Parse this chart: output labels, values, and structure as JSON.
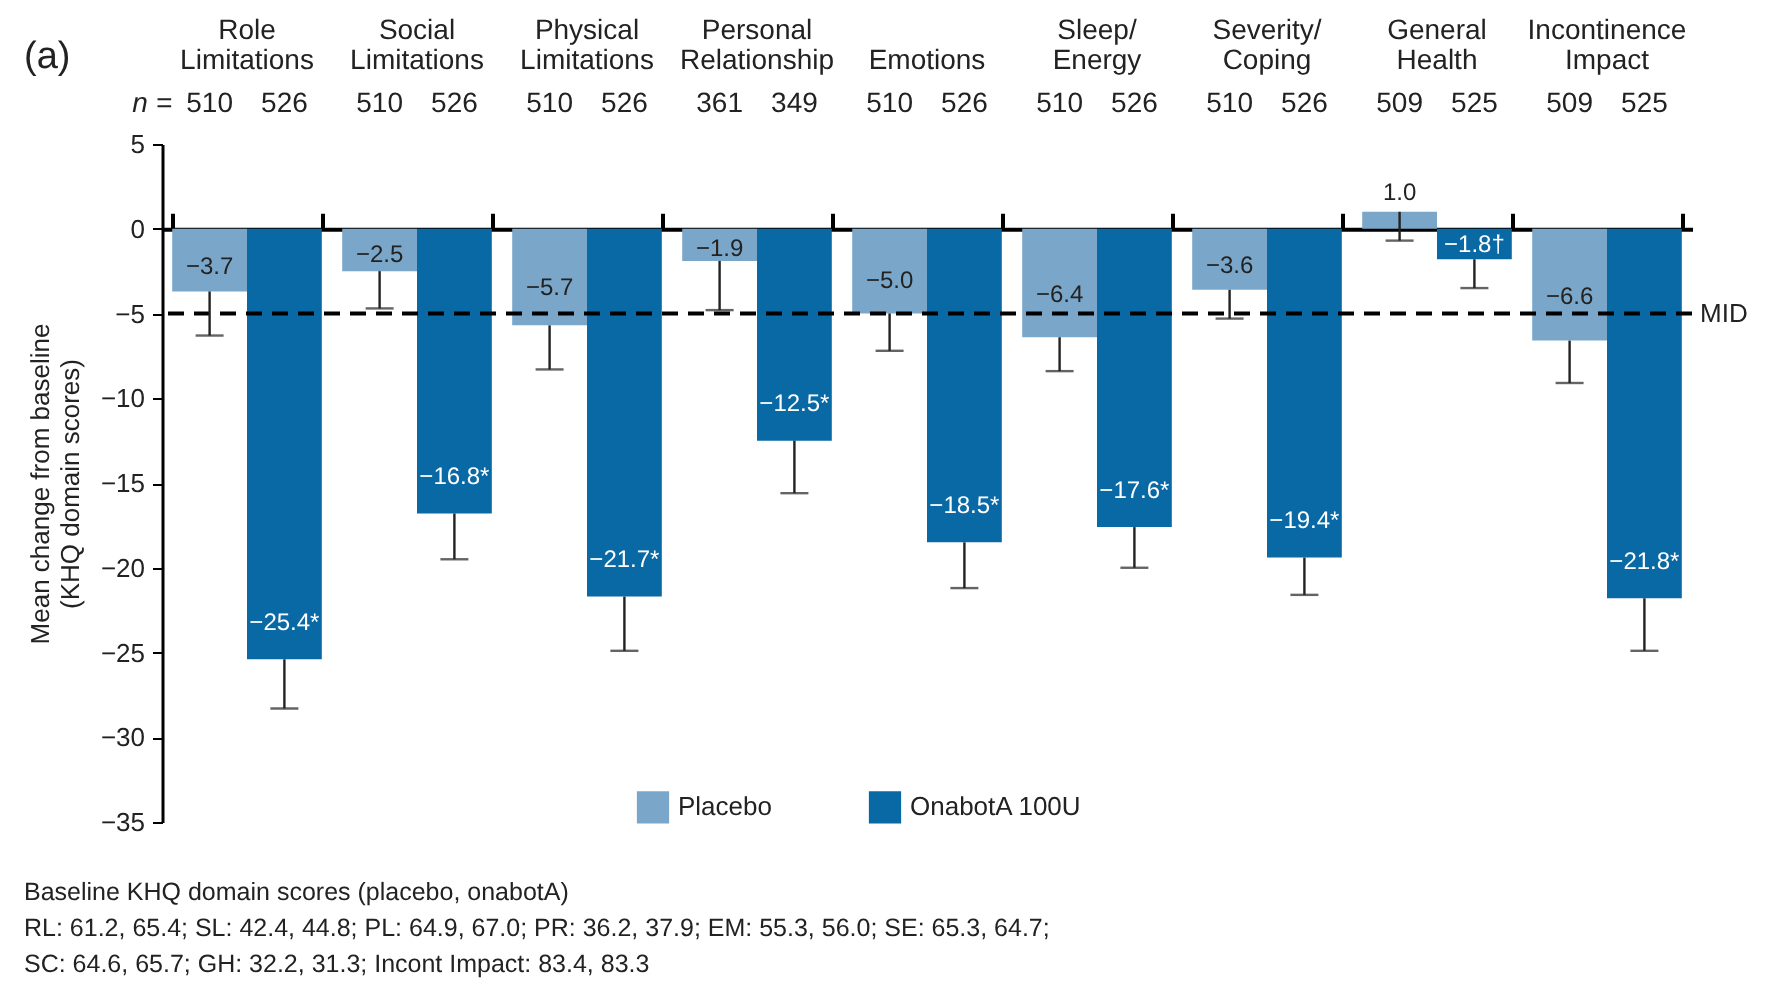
{
  "chart_data": {
    "type": "bar",
    "ylabel": "Mean change from baseline (KHQ domain scores)",
    "categories": [
      "Role Limitations",
      "Social Limitations",
      "Physical Limitations",
      "Personal Relationship",
      "Emotions",
      "Sleep/ Energy",
      "Severity/ Coping",
      "General Health",
      "Incontinence Impact"
    ],
    "series": [
      {
        "name": "Placebo",
        "color": "#7aa7c9",
        "values": [
          -3.7,
          -2.5,
          -5.7,
          -1.9,
          -5.0,
          -6.4,
          -3.6,
          1.0,
          -6.6
        ],
        "value_labels": [
          "−3.7",
          "−2.5",
          "−5.7",
          "−1.9",
          "−5.0",
          "−6.4",
          "−3.6",
          "1.0",
          "−6.6"
        ],
        "errors": [
          [
            -6.3,
            -3.7
          ],
          [
            -4.7,
            -2.5
          ],
          [
            -8.3,
            -5.7
          ],
          [
            -4.8,
            -1.9
          ],
          [
            -7.2,
            -5.0
          ],
          [
            -8.4,
            -6.4
          ],
          [
            -5.3,
            -3.6
          ],
          [
            -0.7,
            1.0
          ],
          [
            -9.1,
            -6.6
          ]
        ]
      },
      {
        "name": "OnabotA 100U",
        "color": "#0869a5",
        "values": [
          -25.4,
          -16.8,
          -21.7,
          -12.5,
          -18.5,
          -17.6,
          -19.4,
          -1.8,
          -21.8
        ],
        "value_labels": [
          "−25.4*",
          "−16.8*",
          "−21.7*",
          "−12.5*",
          "−18.5*",
          "−17.6*",
          "−19.4*",
          "−1.8†",
          "−21.8*"
        ],
        "errors": [
          [
            -28.3,
            -25.4
          ],
          [
            -19.5,
            -16.8
          ],
          [
            -24.9,
            -21.7
          ],
          [
            -15.6,
            -12.5
          ],
          [
            -21.2,
            -18.5
          ],
          [
            -20.0,
            -17.6
          ],
          [
            -21.6,
            -19.4
          ],
          [
            -3.5,
            -1.8
          ],
          [
            -24.9,
            -21.8
          ]
        ]
      }
    ],
    "ylim": [
      -35,
      5
    ],
    "yticks": [
      -35,
      -30,
      -25,
      -20,
      -15,
      -10,
      -5,
      0,
      5
    ],
    "grid": false,
    "legend": "bottom",
    "ref_lines": [
      {
        "axis": "y",
        "value": -5,
        "label": "MID",
        "line_style": "dashed",
        "color": "#000000"
      }
    ],
    "annotations": [
      "(a)",
      "n =",
      "510   526",
      "510   526",
      "510   526",
      "361   349",
      "510   526",
      "510   526",
      "510   526",
      "509   525",
      "509   525",
      "Baseline KHQ domain scores (placebo, onabotA)",
      "RL: 61.2, 65.4; SL: 42.4, 44.8; PL: 64.9, 67.0; PR: 36.2, 37.9; EM: 55.3, 56.0; SE: 65.3, 64.7;",
      "SC: 64.6, 65.7; GH: 32.2, 31.3; Incont Impact: 83.4, 83.3"
    ]
  }
}
